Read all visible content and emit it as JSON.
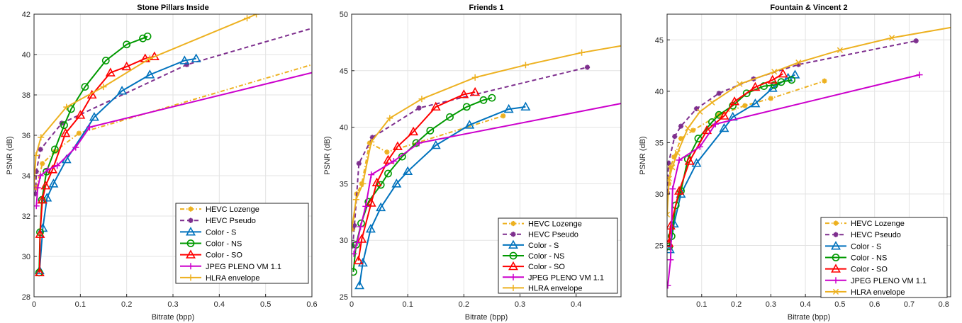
{
  "chart_data": [
    {
      "type": "line",
      "title": "Stone Pillars Inside",
      "xlabel": "Bitrate (bpp)",
      "ylabel": "PSNR (dB)",
      "xlim": [
        0,
        0.6
      ],
      "ylim": [
        28,
        42
      ],
      "xticks": [
        0,
        0.1,
        0.2,
        0.3,
        0.4,
        0.5,
        0.6
      ],
      "yticks": [
        28,
        30,
        32,
        34,
        36,
        38,
        40,
        42
      ],
      "grid": true,
      "legend_position": "bottom-right",
      "series": [
        {
          "name": "HEVC Lozenge",
          "color": "#EDB120",
          "dash": "dashdot",
          "marker": "star",
          "points": [
            [
              0.005,
              33.4
            ],
            [
              0.018,
              34.6
            ],
            [
              0.045,
              35.2
            ],
            [
              0.097,
              36.1
            ],
            [
              0.6,
              39.5
            ]
          ]
        },
        {
          "name": "HEVC Pseudo",
          "color": "#7E2F8E",
          "dash": "dashed",
          "marker": "star",
          "points": [
            [
              0.003,
              33.1
            ],
            [
              0.005,
              34.2
            ],
            [
              0.014,
              35.3
            ],
            [
              0.06,
              36.6
            ],
            [
              0.33,
              39.5
            ],
            [
              0.6,
              41.3
            ]
          ]
        },
        {
          "name": "Color - S",
          "color": "#0072BD",
          "dash": "solid",
          "marker": "triangle",
          "points": [
            [
              0.012,
              29.3
            ],
            [
              0.019,
              31.4
            ],
            [
              0.028,
              32.9
            ],
            [
              0.042,
              33.6
            ],
            [
              0.07,
              34.8
            ],
            [
              0.13,
              36.9
            ],
            [
              0.19,
              38.2
            ],
            [
              0.25,
              39.0
            ],
            [
              0.325,
              39.7
            ],
            [
              0.35,
              39.8
            ]
          ]
        },
        {
          "name": "Color - NS",
          "color": "#009900",
          "dash": "solid",
          "marker": "circle",
          "points": [
            [
              0.011,
              29.2
            ],
            [
              0.013,
              31.2
            ],
            [
              0.017,
              32.8
            ],
            [
              0.027,
              34.2
            ],
            [
              0.045,
              35.3
            ],
            [
              0.065,
              36.5
            ],
            [
              0.08,
              37.3
            ],
            [
              0.11,
              38.4
            ],
            [
              0.155,
              39.7
            ],
            [
              0.2,
              40.5
            ],
            [
              0.235,
              40.8
            ],
            [
              0.245,
              40.9
            ]
          ]
        },
        {
          "name": "Color - SO",
          "color": "#FF0000",
          "dash": "solid",
          "marker": "triangle",
          "points": [
            [
              0.012,
              29.2
            ],
            [
              0.013,
              31.1
            ],
            [
              0.018,
              32.8
            ],
            [
              0.025,
              33.5
            ],
            [
              0.04,
              34.3
            ],
            [
              0.068,
              36.1
            ],
            [
              0.1,
              37.0
            ],
            [
              0.125,
              38.0
            ],
            [
              0.165,
              39.1
            ],
            [
              0.2,
              39.4
            ],
            [
              0.24,
              39.8
            ],
            [
              0.26,
              39.9
            ]
          ]
        },
        {
          "name": "JPEG PLENO VM 1.1",
          "color": "#CC00CC",
          "dash": "solid",
          "marker": "plus",
          "points": [
            [
              0.005,
              32.5
            ],
            [
              0.008,
              33.4
            ],
            [
              0.014,
              34.0
            ],
            [
              0.03,
              34.3
            ],
            [
              0.05,
              34.5
            ],
            [
              0.09,
              35.4
            ],
            [
              0.12,
              36.4
            ],
            [
              0.6,
              39.1
            ]
          ]
        },
        {
          "name": "HLRA envelope",
          "color": "#EDB120",
          "dash": "solid",
          "marker": "plus",
          "points": [
            [
              0.0,
              33.5
            ],
            [
              0.004,
              35.0
            ],
            [
              0.015,
              35.9
            ],
            [
              0.07,
              37.4
            ],
            [
              0.15,
              38.4
            ],
            [
              0.25,
              39.8
            ],
            [
              0.46,
              41.8
            ],
            [
              0.48,
              42.0
            ]
          ]
        }
      ]
    },
    {
      "type": "line",
      "title": "Friends 1",
      "xlabel": "Bitrate (bpp)",
      "ylabel": "PSNR (dB)",
      "xlim": [
        0,
        0.48
      ],
      "ylim": [
        25,
        50
      ],
      "xticks": [
        0,
        0.1,
        0.2,
        0.3,
        0.4
      ],
      "yticks": [
        25,
        30,
        35,
        40,
        45,
        50
      ],
      "grid": true,
      "legend_position": "bottom-right",
      "series": [
        {
          "name": "HEVC Lozenge",
          "color": "#EDB120",
          "dash": "dashdot",
          "marker": "star",
          "points": [
            [
              0.002,
              31.0
            ],
            [
              0.009,
              34.1
            ],
            [
              0.018,
              35.0
            ],
            [
              0.032,
              38.6
            ],
            [
              0.063,
              37.8
            ],
            [
              0.27,
              41.0
            ]
          ]
        },
        {
          "name": "HEVC Pseudo",
          "color": "#7E2F8E",
          "dash": "dashed",
          "marker": "star",
          "points": [
            [
              0.002,
              29.5
            ],
            [
              0.005,
              31.3
            ],
            [
              0.013,
              36.8
            ],
            [
              0.037,
              39.1
            ],
            [
              0.12,
              41.7
            ],
            [
              0.42,
              45.3
            ]
          ]
        },
        {
          "name": "Color - S",
          "color": "#0072BD",
          "dash": "solid",
          "marker": "triangle",
          "points": [
            [
              0.014,
              26.0
            ],
            [
              0.02,
              28.0
            ],
            [
              0.034,
              31.0
            ],
            [
              0.052,
              32.9
            ],
            [
              0.08,
              35.0
            ],
            [
              0.1,
              36.1
            ],
            [
              0.15,
              38.4
            ],
            [
              0.21,
              40.2
            ],
            [
              0.28,
              41.6
            ],
            [
              0.31,
              41.8
            ]
          ]
        },
        {
          "name": "Color - NS",
          "color": "#009900",
          "dash": "solid",
          "marker": "circle",
          "points": [
            [
              0.003,
              27.2
            ],
            [
              0.008,
              29.6
            ],
            [
              0.017,
              31.5
            ],
            [
              0.03,
              33.4
            ],
            [
              0.052,
              34.9
            ],
            [
              0.065,
              35.9
            ],
            [
              0.09,
              37.4
            ],
            [
              0.115,
              38.6
            ],
            [
              0.14,
              39.7
            ],
            [
              0.175,
              40.9
            ],
            [
              0.205,
              41.8
            ],
            [
              0.235,
              42.4
            ],
            [
              0.25,
              42.6
            ]
          ]
        },
        {
          "name": "Color - SO",
          "color": "#FF0000",
          "dash": "solid",
          "marker": "triangle",
          "points": [
            [
              0.012,
              28.2
            ],
            [
              0.018,
              30.1
            ],
            [
              0.035,
              33.3
            ],
            [
              0.045,
              35.1
            ],
            [
              0.065,
              37.1
            ],
            [
              0.082,
              38.3
            ],
            [
              0.11,
              39.6
            ],
            [
              0.15,
              41.8
            ],
            [
              0.2,
              42.9
            ],
            [
              0.22,
              43.1
            ]
          ]
        },
        {
          "name": "JPEG PLENO VM 1.1",
          "color": "#CC00CC",
          "dash": "solid",
          "marker": "plus",
          "points": [
            [
              0.004,
              28.8
            ],
            [
              0.01,
              29.8
            ],
            [
              0.016,
              31.2
            ],
            [
              0.025,
              33.0
            ],
            [
              0.035,
              35.8
            ],
            [
              0.075,
              37.0
            ],
            [
              0.12,
              38.6
            ],
            [
              0.48,
              42.1
            ]
          ]
        },
        {
          "name": "HLRA envelope",
          "color": "#EDB120",
          "dash": "solid",
          "marker": "plus",
          "points": [
            [
              0.0,
              30.9
            ],
            [
              0.008,
              33.6
            ],
            [
              0.02,
              35.0
            ],
            [
              0.035,
              38.7
            ],
            [
              0.068,
              40.8
            ],
            [
              0.125,
              42.5
            ],
            [
              0.22,
              44.4
            ],
            [
              0.31,
              45.5
            ],
            [
              0.41,
              46.6
            ],
            [
              0.48,
              47.2
            ]
          ]
        }
      ]
    },
    {
      "type": "line",
      "title": "Fountain & Vincent 2",
      "xlabel": "Bitrate (bpp)",
      "ylabel": "PSNR (dB)",
      "xlim": [
        0,
        0.82
      ],
      "ylim": [
        20,
        47.5
      ],
      "xticks": [
        0.1,
        0.2,
        0.3,
        0.4,
        0.5,
        0.6,
        0.7,
        0.8
      ],
      "yticks": [
        25,
        30,
        35,
        40,
        45
      ],
      "grid": true,
      "legend_position": "bottom-right",
      "series": [
        {
          "name": "HEVC Lozenge",
          "color": "#EDB120",
          "dash": "dashdot",
          "marker": "star",
          "points": [
            [
              0.005,
              31.0
            ],
            [
              0.01,
              32.6
            ],
            [
              0.02,
              33.6
            ],
            [
              0.04,
              35.4
            ],
            [
              0.075,
              36.2
            ],
            [
              0.15,
              37.7
            ],
            [
              0.225,
              38.6
            ],
            [
              0.3,
              39.3
            ],
            [
              0.455,
              41.0
            ]
          ]
        },
        {
          "name": "HEVC Pseudo",
          "color": "#7E2F8E",
          "dash": "dashed",
          "marker": "star",
          "points": [
            [
              0.001,
              30.1
            ],
            [
              0.004,
              33.0
            ],
            [
              0.022,
              35.6
            ],
            [
              0.04,
              36.6
            ],
            [
              0.085,
              38.3
            ],
            [
              0.15,
              39.8
            ],
            [
              0.25,
              41.2
            ],
            [
              0.38,
              42.6
            ],
            [
              0.72,
              44.9
            ]
          ]
        },
        {
          "name": "Color - S",
          "color": "#0072BD",
          "dash": "solid",
          "marker": "triangle",
          "points": [
            [
              0.008,
              24.6
            ],
            [
              0.02,
              27.1
            ],
            [
              0.04,
              30.0
            ],
            [
              0.085,
              33.0
            ],
            [
              0.165,
              36.4
            ],
            [
              0.19,
              37.5
            ],
            [
              0.255,
              38.8
            ],
            [
              0.305,
              40.3
            ],
            [
              0.35,
              41.3
            ],
            [
              0.37,
              41.6
            ]
          ]
        },
        {
          "name": "Color - NS",
          "color": "#009900",
          "dash": "solid",
          "marker": "circle",
          "points": [
            [
              0.006,
              24.9
            ],
            [
              0.013,
              25.9
            ],
            [
              0.025,
              28.9
            ],
            [
              0.04,
              30.3
            ],
            [
              0.06,
              33.4
            ],
            [
              0.09,
              35.4
            ],
            [
              0.13,
              37.0
            ],
            [
              0.15,
              37.7
            ],
            [
              0.19,
              38.6
            ],
            [
              0.23,
              39.8
            ],
            [
              0.28,
              40.5
            ],
            [
              0.31,
              40.6
            ],
            [
              0.33,
              40.9
            ],
            [
              0.36,
              41.1
            ]
          ]
        },
        {
          "name": "Color - SO",
          "color": "#FF0000",
          "dash": "solid",
          "marker": "triangle",
          "points": [
            [
              0.005,
              25.2
            ],
            [
              0.01,
              26.9
            ],
            [
              0.035,
              30.3
            ],
            [
              0.065,
              33.2
            ],
            [
              0.115,
              36.2
            ],
            [
              0.165,
              37.6
            ],
            [
              0.195,
              39.0
            ],
            [
              0.255,
              40.4
            ],
            [
              0.305,
              41.1
            ],
            [
              0.335,
              41.7
            ]
          ]
        },
        {
          "name": "JPEG PLENO VM 1.1",
          "color": "#CC00CC",
          "dash": "solid",
          "marker": "plus",
          "points": [
            [
              0.002,
              21.1
            ],
            [
              0.01,
              23.6
            ],
            [
              0.016,
              30.5
            ],
            [
              0.035,
              33.3
            ],
            [
              0.095,
              34.6
            ],
            [
              0.14,
              36.8
            ],
            [
              0.73,
              41.6
            ]
          ]
        },
        {
          "name": "HLRA envelope",
          "color": "#EDB120",
          "dash": "solid",
          "marker": "cross",
          "points": [
            [
              0.0,
              28.0
            ],
            [
              0.006,
              31.5
            ],
            [
              0.015,
              32.6
            ],
            [
              0.03,
              34.0
            ],
            [
              0.06,
              36.4
            ],
            [
              0.095,
              38.0
            ],
            [
              0.13,
              38.9
            ],
            [
              0.21,
              40.7
            ],
            [
              0.31,
              41.9
            ],
            [
              0.38,
              42.8
            ],
            [
              0.5,
              44.0
            ],
            [
              0.65,
              45.2
            ],
            [
              0.82,
              46.2
            ]
          ]
        }
      ]
    }
  ]
}
